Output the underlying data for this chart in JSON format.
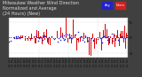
{
  "title_line1": "Milwaukee Weather Wind Direction",
  "title_line2": "Normalized and Average",
  "title_line3": "(24 Hours) (New)",
  "title_fontsize": 3.5,
  "background_color": "#404040",
  "plot_bg_color": "#ffffff",
  "ylim": [
    -6.5,
    6.5
  ],
  "yticks": [
    -5,
    0,
    5
  ],
  "ytick_labels": [
    "-5",
    "0",
    "5"
  ],
  "bar_color": "#dd0000",
  "dot_color": "#2222cc",
  "legend_labels": [
    "Avg",
    "Norm"
  ],
  "legend_colors": [
    "#2222cc",
    "#cc2222"
  ],
  "num_points": 200,
  "seed": 7,
  "grid_color": "#aaaaaa",
  "title_color": "#dddddd"
}
